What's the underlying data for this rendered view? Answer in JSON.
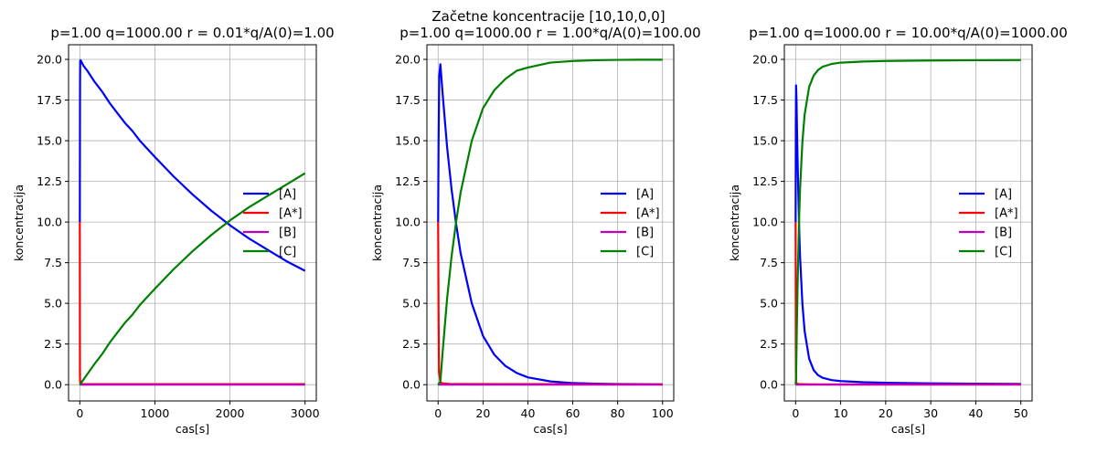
{
  "suptitle": "Začetne koncentracije [10,10,0,0]",
  "chart_data": [
    {
      "type": "line",
      "title": "p=1.00 q=1000.00 r = 0.01*q/A(0)=1.00",
      "xlabel": "cas[s]",
      "ylabel": "koncentracija",
      "xlim": [
        -150,
        3150
      ],
      "ylim": [
        -1.0,
        20.9
      ],
      "xticks": [
        0,
        1000,
        2000,
        3000
      ],
      "yticks": [
        0.0,
        2.5,
        5.0,
        7.5,
        10.0,
        12.5,
        15.0,
        17.5,
        20.0
      ],
      "ytick_labels": [
        "0.0",
        "2.5",
        "5.0",
        "7.5",
        "10.0",
        "12.5",
        "15.0",
        "17.5",
        "20.0"
      ],
      "grid": true,
      "legend_position": "center-right",
      "series": [
        {
          "name": "[A]",
          "color": "#0000ff",
          "x": [
            0,
            1,
            2,
            3,
            5,
            10,
            50,
            100,
            200,
            300,
            400,
            500,
            600,
            700,
            800,
            900,
            1000,
            1250,
            1500,
            1750,
            2000,
            2250,
            2500,
            2750,
            3000
          ],
          "y": [
            10.0,
            13.0,
            16.5,
            18.5,
            19.9,
            19.95,
            19.6,
            19.3,
            18.6,
            18.0,
            17.3,
            16.7,
            16.1,
            15.6,
            15.0,
            14.5,
            14.0,
            12.8,
            11.7,
            10.7,
            9.8,
            9.0,
            8.3,
            7.6,
            7.0
          ]
        },
        {
          "name": "[A*]",
          "color": "#ff0000",
          "x": [
            0,
            0.5,
            1,
            2,
            5,
            10,
            100,
            1000,
            2000,
            3000
          ],
          "y": [
            10.0,
            8.0,
            3.0,
            0.5,
            0.1,
            0.03,
            0.03,
            0.03,
            0.03,
            0.03
          ]
        },
        {
          "name": "[B]",
          "color": "#bf00bf",
          "x": [
            0,
            3000
          ],
          "y": [
            0.0,
            0.0
          ]
        },
        {
          "name": "[C]",
          "color": "#008000",
          "x": [
            0,
            100,
            200,
            300,
            400,
            500,
            600,
            700,
            800,
            900,
            1000,
            1250,
            1500,
            1750,
            2000,
            2250,
            2500,
            2750,
            3000
          ],
          "y": [
            0.0,
            0.65,
            1.3,
            1.9,
            2.6,
            3.2,
            3.8,
            4.3,
            4.9,
            5.4,
            5.9,
            7.1,
            8.2,
            9.2,
            10.1,
            10.9,
            11.6,
            12.3,
            13.0
          ]
        }
      ]
    },
    {
      "type": "line",
      "title": "p=1.00 q=1000.00 r = 1.00*q/A(0)=100.00",
      "xlabel": "cas[s]",
      "ylabel": "koncentracija",
      "xlim": [
        -5,
        105
      ],
      "ylim": [
        -1.0,
        20.9
      ],
      "xticks": [
        0,
        20,
        40,
        60,
        80,
        100
      ],
      "yticks": [
        0.0,
        2.5,
        5.0,
        7.5,
        10.0,
        12.5,
        15.0,
        17.5,
        20.0
      ],
      "ytick_labels": [
        "0.0",
        "2.5",
        "5.0",
        "7.5",
        "10.0",
        "12.5",
        "15.0",
        "17.5",
        "20.0"
      ],
      "grid": true,
      "legend_position": "center-right",
      "series": [
        {
          "name": "[A]",
          "color": "#0000ff",
          "x": [
            0,
            0.2,
            0.5,
            1,
            2,
            4,
            6,
            8,
            10,
            15,
            20,
            25,
            30,
            35,
            40,
            50,
            60,
            70,
            80,
            90,
            100
          ],
          "y": [
            10.0,
            15.0,
            19.0,
            19.7,
            17.9,
            14.6,
            12.0,
            9.9,
            8.1,
            5.0,
            3.0,
            1.85,
            1.15,
            0.72,
            0.45,
            0.2,
            0.1,
            0.06,
            0.04,
            0.03,
            0.02
          ]
        },
        {
          "name": "[A*]",
          "color": "#ff0000",
          "x": [
            0,
            0.2,
            0.4,
            1,
            2,
            5,
            10,
            50,
            100
          ],
          "y": [
            10.0,
            4.0,
            0.8,
            0.15,
            0.08,
            0.05,
            0.04,
            0.03,
            0.02
          ]
        },
        {
          "name": "[B]",
          "color": "#bf00bf",
          "x": [
            0,
            100
          ],
          "y": [
            0.0,
            0.0
          ]
        },
        {
          "name": "[C]",
          "color": "#008000",
          "x": [
            0,
            1,
            2,
            4,
            6,
            8,
            10,
            15,
            20,
            25,
            30,
            35,
            40,
            50,
            60,
            70,
            80,
            90,
            100
          ],
          "y": [
            0.0,
            0.2,
            2.0,
            5.3,
            7.9,
            10.0,
            11.8,
            15.0,
            17.0,
            18.1,
            18.8,
            19.3,
            19.5,
            19.8,
            19.9,
            19.95,
            19.97,
            19.98,
            19.98
          ]
        }
      ]
    },
    {
      "type": "line",
      "title": "p=1.00 q=1000.00 r = 10.00*q/A(0)=1000.00",
      "xlabel": "cas[s]",
      "ylabel": "koncentracija",
      "xlim": [
        -2.5,
        52.5
      ],
      "ylim": [
        -1.0,
        20.9
      ],
      "xticks": [
        0,
        10,
        20,
        30,
        40,
        50
      ],
      "yticks": [
        0.0,
        2.5,
        5.0,
        7.5,
        10.0,
        12.5,
        15.0,
        17.5,
        20.0
      ],
      "ytick_labels": [
        "0.0",
        "2.5",
        "5.0",
        "7.5",
        "10.0",
        "12.5",
        "15.0",
        "17.5",
        "20.0"
      ],
      "grid": true,
      "legend_position": "center-right",
      "series": [
        {
          "name": "[A]",
          "color": "#0000ff",
          "x": [
            0,
            0.05,
            0.1,
            0.2,
            0.3,
            0.5,
            0.8,
            1,
            1.5,
            2,
            3,
            4,
            5,
            6,
            8,
            10,
            15,
            20,
            30,
            40,
            50
          ],
          "y": [
            10.0,
            16.0,
            18.4,
            17.5,
            15.8,
            13.0,
            9.5,
            7.8,
            5.0,
            3.3,
            1.6,
            0.9,
            0.58,
            0.42,
            0.28,
            0.22,
            0.15,
            0.12,
            0.08,
            0.06,
            0.05
          ]
        },
        {
          "name": "[A*]",
          "color": "#ff0000",
          "x": [
            0,
            0.03,
            0.06,
            0.1,
            0.3,
            1,
            5,
            10,
            50
          ],
          "y": [
            10.0,
            5.0,
            1.0,
            0.2,
            0.05,
            0.03,
            0.02,
            0.02,
            0.02
          ]
        },
        {
          "name": "[B]",
          "color": "#bf00bf",
          "x": [
            0,
            50
          ],
          "y": [
            0.0,
            0.0
          ]
        },
        {
          "name": "[C]",
          "color": "#008000",
          "x": [
            0,
            0.1,
            0.3,
            0.5,
            0.8,
            1,
            1.5,
            2,
            3,
            4,
            5,
            6,
            8,
            10,
            15,
            20,
            30,
            40,
            50
          ],
          "y": [
            0.0,
            0.4,
            4.0,
            6.9,
            10.4,
            12.1,
            14.9,
            16.6,
            18.3,
            19.0,
            19.35,
            19.55,
            19.72,
            19.8,
            19.87,
            19.9,
            19.93,
            19.95,
            19.96
          ]
        }
      ]
    }
  ]
}
